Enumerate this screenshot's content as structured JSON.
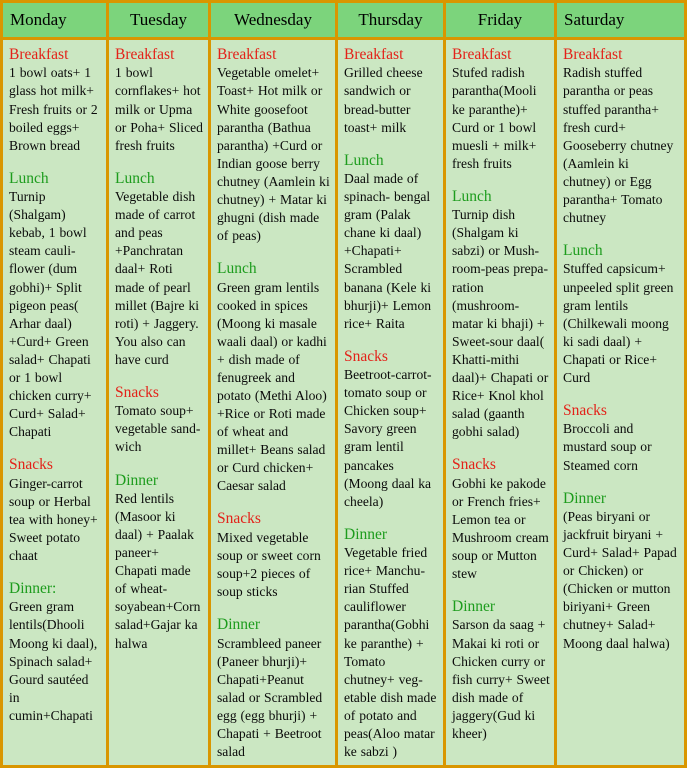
{
  "colors": {
    "border": "#D99600",
    "headerBg": "#7CD47C",
    "cellBg": "#CBE7C2",
    "red": "#E32219",
    "green": "#1D9C1D"
  },
  "days": [
    {
      "name": "Monday",
      "sections": [
        {
          "label": "Breakfast",
          "text": "1 bowl oats+ 1 glass hot milk+ Fresh fruits or 2 boiled eggs+ Brown bread"
        },
        {
          "label": "Lunch",
          "text": "Turnip (Shalgam) kebab, 1 bowl steam cauli-flower (dum gobhi)+ Split pigeon peas( Arhar daal) +Curd+ Green salad+ Chapati or 1 bowl chicken curry+ Curd+ Salad+ Chapati"
        },
        {
          "label": "Snacks",
          "text": "Ginger-carrot soup or Herbal tea with honey+ Sweet potato chaat"
        },
        {
          "label": "Dinner:",
          "text": "Green gram lentils(Dhooli Moong ki daal), Spinach salad+ Gourd sautéed in cumin+Chapati"
        }
      ]
    },
    {
      "name": "Tuesday",
      "sections": [
        {
          "label": "Breakfast",
          "text": "1 bowl cornflakes+ hot milk or Upma or Poha+ Sliced fresh fruits"
        },
        {
          "label": "Lunch",
          "text": "Vegetable dish made of carrot and peas +Panchratan daal+ Roti made of pearl millet (Bajre ki roti) + Jaggery. You also can have curd"
        },
        {
          "label": "Snacks",
          "text": "Tomato soup+ vegetable sand-wich"
        },
        {
          "label": "Dinner",
          "text": "Red lentils (Masoor ki daal) + Paalak paneer+ Chapati made of wheat-soyabean+Corn salad+Gajar ka halwa"
        }
      ]
    },
    {
      "name": "Wednesday",
      "sections": [
        {
          "label": "Breakfast",
          "text": "Vegetable omelet+ Toast+ Hot milk or White goosefoot parantha (Bathua parantha) +Curd or Indian goose berry chutney (Aamlein ki chutney) + Matar ki ghugni (dish made of peas)"
        },
        {
          "label": "Lunch",
          "text": "Green gram lentils cooked in spices (Moong ki masale waali daal) or kadhi + dish made of fenugreek and potato (Methi Aloo) +Rice or Roti made of wheat and millet+ Beans salad or Curd chicken+ Caesar salad"
        },
        {
          "label": "Snacks",
          "text": "Mixed vegetable soup or sweet corn soup+2 pieces of soup sticks"
        },
        {
          "label": "Dinner",
          "text": "Scrambleed paneer (Paneer bhurji)+ Chapati+Peanut salad or Scrambled egg (egg bhurji) + Chapati + Beetroot salad"
        }
      ]
    },
    {
      "name": "Thursday",
      "sections": [
        {
          "label": "Breakfast",
          "text": "Grilled cheese sandwich or bread-butter toast+ milk"
        },
        {
          "label": "Lunch",
          "text": "Daal made of spinach- bengal gram (Palak chane ki daal) +Chapati+ Scrambled banana (Kele ki bhurji)+ Lemon rice+ Raita"
        },
        {
          "label": "Snacks",
          "text": "Beetroot-carrot-tomato soup or Chicken soup+ Savory green gram lentil pancakes (Moong daal ka cheela)"
        },
        {
          "label": "Dinner",
          "text": "Vegetable fried rice+ Manchu-rian Stuffed cauliflower parantha(Gobhi ke paranthe) + Tomato chutney+ veg-etable dish made of potato and peas(Aloo matar ke sabzi )"
        }
      ]
    },
    {
      "name": "Friday",
      "sections": [
        {
          "label": "Breakfast",
          "text": "Stufed radish parantha(Mooli ke paranthe)+ Curd or 1 bowl muesli + milk+ fresh fruits"
        },
        {
          "label": "Lunch",
          "text": "Turnip dish (Shalgam ki sabzi) or Mush-room-peas prepa-ration (mushroom-matar ki bhaji) + Sweet-sour daal( Khatti-mithi daal)+ Chapati or Rice+ Knol khol salad (gaanth gobhi salad)"
        },
        {
          "label": "Snacks",
          "text": "Gobhi ke pakode or French fries+ Lemon tea or Mushroom cream soup or Mutton stew"
        },
        {
          "label": "Dinner",
          "text": "Sarson da saag + Makai ki roti or Chicken curry or fish curry+ Sweet dish made of jaggery(Gud ki kheer)"
        }
      ]
    },
    {
      "name": "Saturday",
      "sections": [
        {
          "label": "Breakfast",
          "text": "Radish stuffed parantha or peas stuffed parantha+ fresh curd+ Gooseberry chutney (Aamlein ki chutney) or Egg parantha+ Tomato chutney"
        },
        {
          "label": "Lunch",
          "text": "Stuffed capsicum+ unpeeled split green gram lentils (Chilkewali moong ki sadi daal) + Chapati or Rice+ Curd"
        },
        {
          "label": "Snacks",
          "text": "Broccoli and mustard soup or Steamed corn"
        },
        {
          "label": "Dinner",
          "text": "(Peas biryani or jackfruit biryani + Curd+ Salad+ Papad or Chicken) or (Chicken or mutton biriyani+ Green chutney+ Salad+ Moong daal halwa)"
        }
      ]
    }
  ]
}
